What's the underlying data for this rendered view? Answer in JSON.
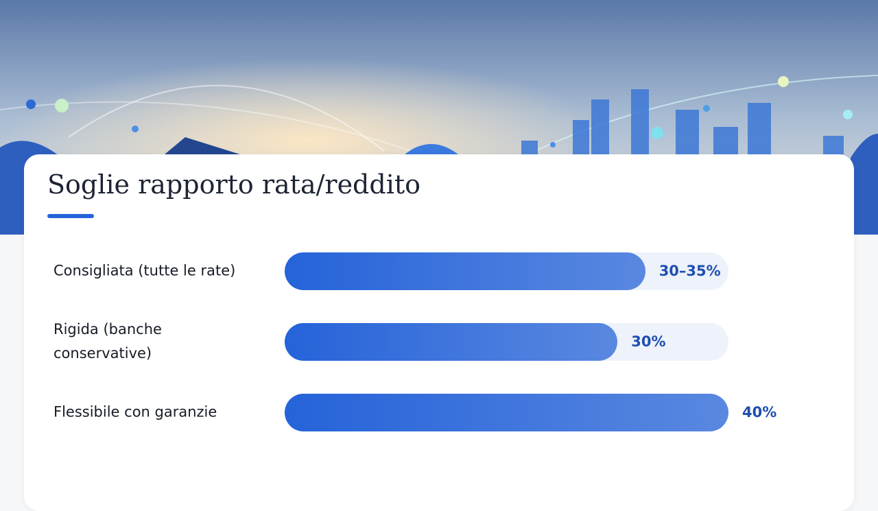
{
  "chart_data": {
    "type": "bar",
    "orientation": "horizontal",
    "title": "Soglie rapporto rata/reddito",
    "categories": [
      "Consigliata (tutte le rate)",
      "Rigida (banche conservative)",
      "Flessibile con garanzie"
    ],
    "values": [
      32.5,
      30,
      40
    ],
    "value_labels": [
      "30–35%",
      "30%",
      "40%"
    ],
    "xlim": [
      0,
      40
    ],
    "color": "#2563d9"
  }
}
